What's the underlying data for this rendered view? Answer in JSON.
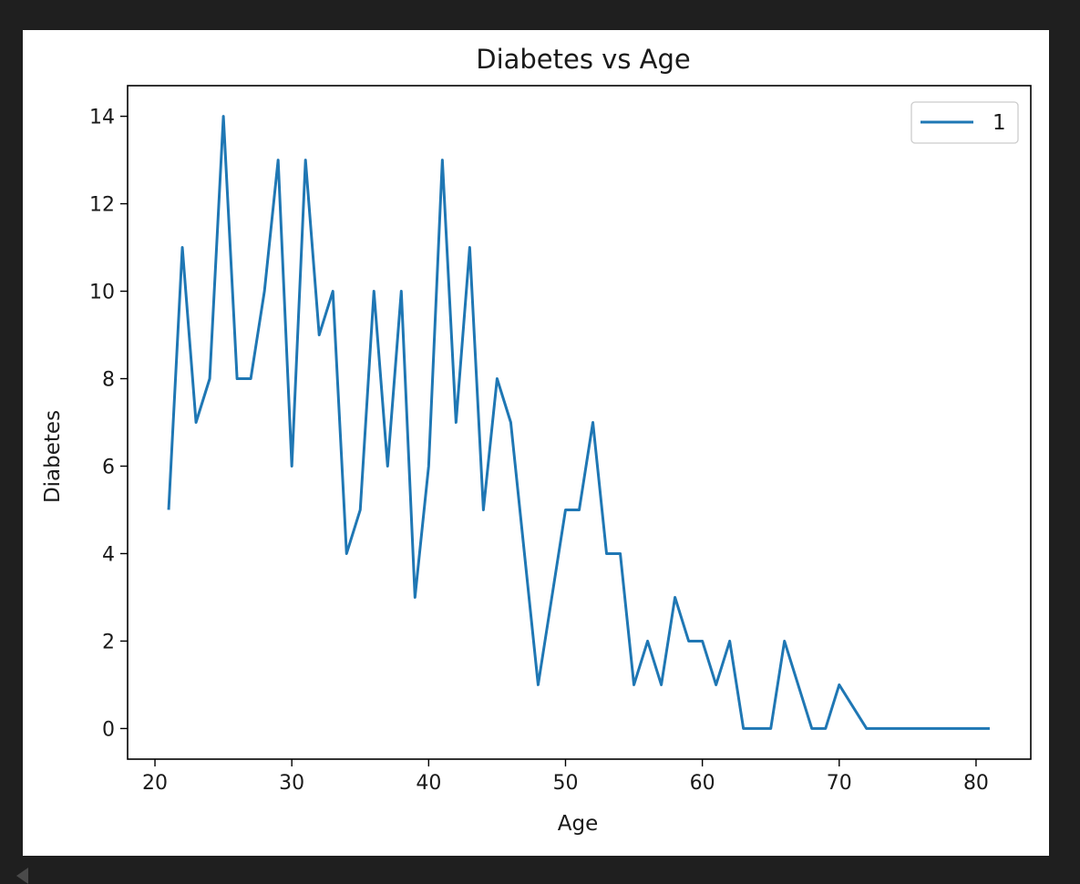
{
  "colors": {
    "page_background": "#1f1f1f",
    "figure_background": "#ffffff",
    "series": "#1f77b4",
    "axes": "#000000"
  },
  "chart_data": {
    "type": "line",
    "title": "Diabetes vs Age",
    "xlabel": "Age",
    "ylabel": "Diabetes",
    "xlim": [
      18,
      84
    ],
    "ylim": [
      -0.7,
      14.7
    ],
    "xticks": [
      20,
      30,
      40,
      50,
      60,
      70,
      80
    ],
    "yticks": [
      0,
      2,
      4,
      6,
      8,
      10,
      12,
      14
    ],
    "grid": false,
    "legend_position": "top-right",
    "series": [
      {
        "name": "1",
        "x": [
          21,
          22,
          23,
          24,
          25,
          26,
          27,
          28,
          29,
          30,
          31,
          32,
          33,
          34,
          35,
          36,
          37,
          38,
          39,
          40,
          41,
          42,
          43,
          44,
          45,
          46,
          47,
          48,
          49,
          50,
          51,
          52,
          53,
          54,
          55,
          56,
          57,
          58,
          59,
          60,
          61,
          62,
          63,
          64,
          65,
          66,
          67,
          68,
          69,
          70,
          72,
          81
        ],
        "y": [
          5,
          11,
          7,
          8,
          14,
          8,
          8,
          10,
          13,
          6,
          13,
          9,
          10,
          4,
          5,
          10,
          6,
          10,
          3,
          6,
          13,
          7,
          11,
          5,
          8,
          7,
          4,
          1,
          3,
          5,
          5,
          7,
          4,
          4,
          1,
          2,
          1,
          3,
          2,
          2,
          1,
          2,
          0,
          0,
          0,
          2,
          1,
          0,
          0,
          1,
          0,
          0
        ]
      }
    ]
  }
}
